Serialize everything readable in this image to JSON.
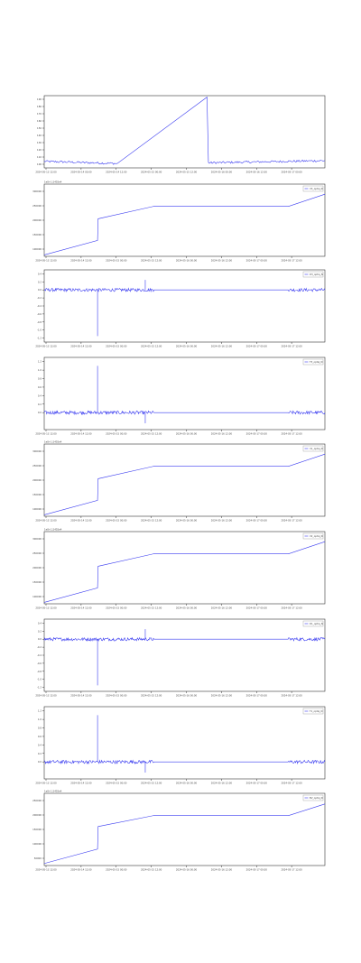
{
  "chart_data": [
    {
      "type": "line",
      "x_ticks": [
        "2024-05-13 12:00",
        "2024-05-14 00:00",
        "2024-05-14 12:00",
        "2024-05-15 00:00",
        "2024-05-15 12:00",
        "2024-05-16 00:00",
        "2024-05-16 12:00",
        "2024-05-17 00:00"
      ],
      "y_ticks": [
        "100",
        "110",
        "120",
        "130",
        "140",
        "150",
        "160",
        "170",
        "180",
        "190"
      ],
      "ylim": [
        95,
        195
      ],
      "legend": "",
      "pattern": "ramp",
      "series": [
        {
          "x": [
            0,
            0.26,
            0.58,
            0.585,
            1.0
          ],
          "y": [
            104,
            101,
            193,
            102,
            105
          ],
          "noise_ranges": [
            [
              0,
              0.26
            ],
            [
              0.585,
              1.0
            ]
          ],
          "noise_amp": 1.5
        }
      ]
    },
    {
      "type": "line",
      "x_ticks": [
        "2024-05-13 12:00",
        "2024-05-14 12:00",
        "2024-05-15 00:00",
        "2024-05-15 12:00",
        "2024-05-16 00:00",
        "2024-05-16 12:00",
        "2024-05-17 00:00",
        "2024-05-17 12:00"
      ],
      "y_ticks": [
        "100000",
        "150000",
        "200000",
        "250000",
        "300000"
      ],
      "offset_text": "1e8+1.5455e4",
      "ylim": [
        75000,
        325000
      ],
      "legend": "V3_optiq_N",
      "pattern": "steps",
      "series": [
        {
          "x": [
            0,
            0.19,
            0.192,
            0.39,
            0.87,
            1.0
          ],
          "y": [
            80000,
            130000,
            205000,
            248000,
            248000,
            290000
          ]
        }
      ]
    },
    {
      "type": "line",
      "x_ticks": [
        "2024-05-13 12:00",
        "2024-05-14 12:00",
        "2024-05-15 00:00",
        "2024-05-15 12:00",
        "2024-05-16 00:00",
        "2024-05-16 12:00",
        "2024-05-17 00:00",
        "2024-05-17 12:00"
      ],
      "y_ticks": [
        "0.4",
        "0.2",
        "0.0",
        "-0.2",
        "-0.4",
        "-0.6",
        "-0.8",
        "-1.0",
        "-1.2"
      ],
      "ylim": [
        -1.3,
        0.5
      ],
      "legend": "D3_optiq_N",
      "pattern": "noise",
      "series": [
        {
          "baseline": 0.0,
          "noise_ranges": [
            [
              0,
              0.39
            ],
            [
              0.87,
              1.0
            ]
          ],
          "noise_amp": 0.04,
          "spikes": [
            {
              "x": 0.19,
              "y": -1.15
            },
            {
              "x": 0.36,
              "y": 0.25
            }
          ]
        }
      ]
    },
    {
      "type": "line",
      "x_ticks": [
        "2024-05-13 12:00",
        "2024-05-14 12:00",
        "2024-05-15 00:00",
        "2024-05-15 12:00",
        "2024-05-16 00:00",
        "2024-05-16 12:00",
        "2024-05-17 00:00",
        "2024-05-17 12:00"
      ],
      "y_ticks": [
        "1.2",
        "1.0",
        "0.8",
        "0.6",
        "0.4",
        "0.2",
        "0.0"
      ],
      "ylim": [
        -0.4,
        1.3
      ],
      "legend": "T3_optiq_N",
      "pattern": "noise",
      "series": [
        {
          "baseline": 0.0,
          "noise_ranges": [
            [
              0,
              0.39
            ],
            [
              0.87,
              1.0
            ]
          ],
          "noise_amp": 0.04,
          "spikes": [
            {
              "x": 0.19,
              "y": 1.1
            },
            {
              "x": 0.36,
              "y": -0.25
            }
          ]
        }
      ]
    },
    {
      "type": "line",
      "x_ticks": [
        "2024-05-13 12:00",
        "2024-05-14 12:00",
        "2024-05-15 00:00",
        "2024-05-15 12:00",
        "2024-05-16 00:00",
        "2024-05-16 12:00",
        "2024-05-17 00:00",
        "2024-05-17 12:00"
      ],
      "y_ticks": [
        "100000",
        "150000",
        "200000",
        "250000",
        "300000"
      ],
      "offset_text": "1e8+1.5455e4",
      "ylim": [
        75000,
        325000
      ],
      "legend": "V1_optiq_N",
      "pattern": "steps",
      "series": [
        {
          "x": [
            0,
            0.19,
            0.192,
            0.39,
            0.87,
            1.0
          ],
          "y": [
            80000,
            130000,
            205000,
            248000,
            248000,
            290000
          ]
        }
      ]
    },
    {
      "type": "line",
      "x_ticks": [
        "2024-05-13 12:00",
        "2024-05-14 12:00",
        "2024-05-15 00:00",
        "2024-05-15 12:00",
        "2024-05-16 00:00",
        "2024-05-16 12:00",
        "2024-05-17 00:00",
        "2024-05-17 12:00"
      ],
      "y_ticks": [
        "100000",
        "150000",
        "200000",
        "250000",
        "300000"
      ],
      "offset_text": "1e8+1.5455e4",
      "ylim": [
        75000,
        325000
      ],
      "legend": "V2_optiq_N",
      "pattern": "steps",
      "series": [
        {
          "x": [
            0,
            0.19,
            0.192,
            0.39,
            0.87,
            1.0
          ],
          "y": [
            80000,
            130000,
            205000,
            248000,
            248000,
            290000
          ]
        }
      ]
    },
    {
      "type": "line",
      "x_ticks": [
        "2024-05-13 12:00",
        "2024-05-14 12:00",
        "2024-05-15 00:00",
        "2024-05-15 12:00",
        "2024-05-16 00:00",
        "2024-05-16 12:00",
        "2024-05-17 00:00",
        "2024-05-17 12:00"
      ],
      "y_ticks": [
        "0.4",
        "0.2",
        "0.0",
        "-0.2",
        "-0.4",
        "-0.6",
        "-0.8",
        "-1.0",
        "-1.2"
      ],
      "ylim": [
        -1.3,
        0.5
      ],
      "legend": "D1_optiq_N",
      "pattern": "noise",
      "series": [
        {
          "baseline": 0.0,
          "noise_ranges": [
            [
              0,
              0.39
            ],
            [
              0.87,
              1.0
            ]
          ],
          "noise_amp": 0.04,
          "spikes": [
            {
              "x": 0.19,
              "y": -1.15
            },
            {
              "x": 0.36,
              "y": 0.25
            }
          ]
        }
      ]
    },
    {
      "type": "line",
      "x_ticks": [
        "2024-05-13 12:00",
        "2024-05-14 12:00",
        "2024-05-15 00:00",
        "2024-05-15 12:00",
        "2024-05-16 00:00",
        "2024-05-16 12:00",
        "2024-05-17 00:00",
        "2024-05-17 12:00"
      ],
      "y_ticks": [
        "1.2",
        "1.0",
        "0.8",
        "0.6",
        "0.4",
        "0.2",
        "0.0"
      ],
      "ylim": [
        -0.4,
        1.3
      ],
      "legend": "T1_optiq_N",
      "pattern": "noise",
      "series": [
        {
          "baseline": 0.0,
          "noise_ranges": [
            [
              0,
              0.39
            ],
            [
              0.87,
              1.0
            ]
          ],
          "noise_amp": 0.04,
          "spikes": [
            {
              "x": 0.19,
              "y": 1.1
            },
            {
              "x": 0.36,
              "y": -0.25
            }
          ]
        }
      ]
    },
    {
      "type": "line",
      "x_ticks": [
        "2024-05-13 12:00",
        "2024-05-14 12:00",
        "2024-05-15 00:00",
        "2024-05-15 12:00",
        "2024-05-16 00:00",
        "2024-05-16 12:00",
        "2024-05-17 00:00",
        "2024-05-17 12:00"
      ],
      "y_ticks": [
        "50000",
        "100000",
        "150000",
        "200000",
        "250000"
      ],
      "offset_text": "1e8+1.5455e4",
      "ylim": [
        25000,
        275000
      ],
      "legend": "BV_optiq_N",
      "pattern": "steps",
      "series": [
        {
          "x": [
            0,
            0.19,
            0.192,
            0.39,
            0.87,
            1.0
          ],
          "y": [
            32000,
            82000,
            160000,
            198000,
            198000,
            238000
          ]
        }
      ]
    }
  ],
  "colors": {
    "line": "#3a3cf0",
    "axis": "#333333",
    "text": "#444444",
    "legend_border": "#999999"
  }
}
